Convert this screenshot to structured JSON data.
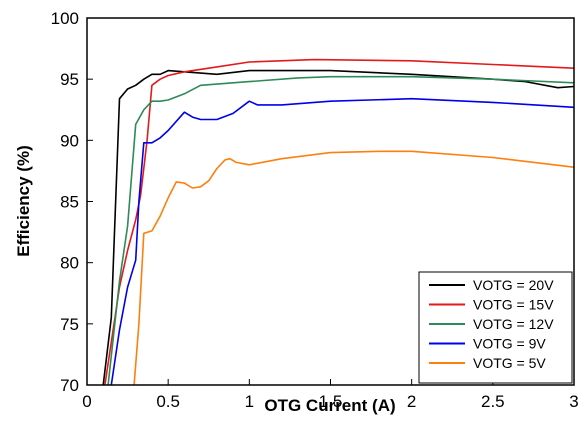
{
  "chart_data": {
    "type": "line",
    "title": "",
    "xlabel": "OTG Current (A)",
    "ylabel": "Efficiency (%)",
    "xlim": [
      0,
      3
    ],
    "ylim": [
      70,
      100
    ],
    "x_ticks": [
      0,
      0.5,
      1,
      1.5,
      2,
      2.5,
      3
    ],
    "x_tick_labels": [
      "0",
      "0.5",
      "1",
      "1.5",
      "2",
      "2.5",
      "3"
    ],
    "y_ticks": [
      70,
      75,
      80,
      85,
      90,
      95,
      100
    ],
    "y_tick_labels": [
      "70",
      "75",
      "80",
      "85",
      "90",
      "95",
      "100"
    ],
    "grid": false,
    "legend_position": "bottom-right",
    "series": [
      {
        "name": "VOTG = 20V",
        "color": "#000000",
        "points": [
          [
            0.1,
            70
          ],
          [
            0.15,
            75.5
          ],
          [
            0.2,
            93.4
          ],
          [
            0.25,
            94.2
          ],
          [
            0.3,
            94.5
          ],
          [
            0.35,
            95
          ],
          [
            0.4,
            95.4
          ],
          [
            0.45,
            95.4
          ],
          [
            0.5,
            95.7
          ],
          [
            0.6,
            95.6
          ],
          [
            0.8,
            95.4
          ],
          [
            1,
            95.7
          ],
          [
            1.5,
            95.7
          ],
          [
            2,
            95.4
          ],
          [
            2.5,
            95
          ],
          [
            2.7,
            94.8
          ],
          [
            2.9,
            94.3
          ],
          [
            3,
            94.4
          ]
        ]
      },
      {
        "name": "VOTG = 15V",
        "color": "#e31a1c",
        "points": [
          [
            0.11,
            70
          ],
          [
            0.2,
            78
          ],
          [
            0.25,
            81
          ],
          [
            0.3,
            83.5
          ],
          [
            0.33,
            85.5
          ],
          [
            0.37,
            90
          ],
          [
            0.4,
            94.5
          ],
          [
            0.45,
            95
          ],
          [
            0.5,
            95.3
          ],
          [
            0.6,
            95.6
          ],
          [
            0.8,
            96
          ],
          [
            1,
            96.4
          ],
          [
            1.4,
            96.6
          ],
          [
            2,
            96.5
          ],
          [
            2.5,
            96.2
          ],
          [
            3,
            95.9
          ]
        ]
      },
      {
        "name": "VOTG = 12V",
        "color": "#2e8b57",
        "points": [
          [
            0.13,
            70
          ],
          [
            0.2,
            78.5
          ],
          [
            0.25,
            83
          ],
          [
            0.3,
            91.3
          ],
          [
            0.35,
            92.5
          ],
          [
            0.4,
            93.2
          ],
          [
            0.45,
            93.2
          ],
          [
            0.5,
            93.3
          ],
          [
            0.6,
            93.8
          ],
          [
            0.7,
            94.5
          ],
          [
            0.8,
            94.6
          ],
          [
            1,
            94.8
          ],
          [
            1.3,
            95.1
          ],
          [
            1.5,
            95.2
          ],
          [
            2,
            95.2
          ],
          [
            2.5,
            95
          ],
          [
            3,
            94.7
          ]
        ]
      },
      {
        "name": "VOTG = 9V",
        "color": "#0000ee",
        "points": [
          [
            0.15,
            70
          ],
          [
            0.2,
            74.5
          ],
          [
            0.25,
            78
          ],
          [
            0.3,
            80.2
          ],
          [
            0.32,
            85
          ],
          [
            0.35,
            89.8
          ],
          [
            0.4,
            89.8
          ],
          [
            0.45,
            90.2
          ],
          [
            0.5,
            90.8
          ],
          [
            0.6,
            92.3
          ],
          [
            0.65,
            91.9
          ],
          [
            0.7,
            91.7
          ],
          [
            0.8,
            91.7
          ],
          [
            0.9,
            92.2
          ],
          [
            1,
            93.2
          ],
          [
            1.05,
            92.9
          ],
          [
            1.2,
            92.9
          ],
          [
            1.5,
            93.2
          ],
          [
            2,
            93.4
          ],
          [
            2.5,
            93.1
          ],
          [
            3,
            92.7
          ]
        ]
      },
      {
        "name": "VOTG = 5V",
        "color": "#ff7f0e",
        "points": [
          [
            0.29,
            70
          ],
          [
            0.32,
            75
          ],
          [
            0.35,
            82.4
          ],
          [
            0.4,
            82.6
          ],
          [
            0.45,
            83.8
          ],
          [
            0.5,
            85.3
          ],
          [
            0.55,
            86.6
          ],
          [
            0.6,
            86.5
          ],
          [
            0.65,
            86.1
          ],
          [
            0.7,
            86.2
          ],
          [
            0.75,
            86.7
          ],
          [
            0.8,
            87.7
          ],
          [
            0.85,
            88.4
          ],
          [
            0.88,
            88.5
          ],
          [
            0.92,
            88.2
          ],
          [
            1,
            88
          ],
          [
            1.2,
            88.5
          ],
          [
            1.5,
            89
          ],
          [
            1.8,
            89.1
          ],
          [
            2,
            89.1
          ],
          [
            2.5,
            88.6
          ],
          [
            3,
            87.8
          ]
        ]
      }
    ]
  }
}
